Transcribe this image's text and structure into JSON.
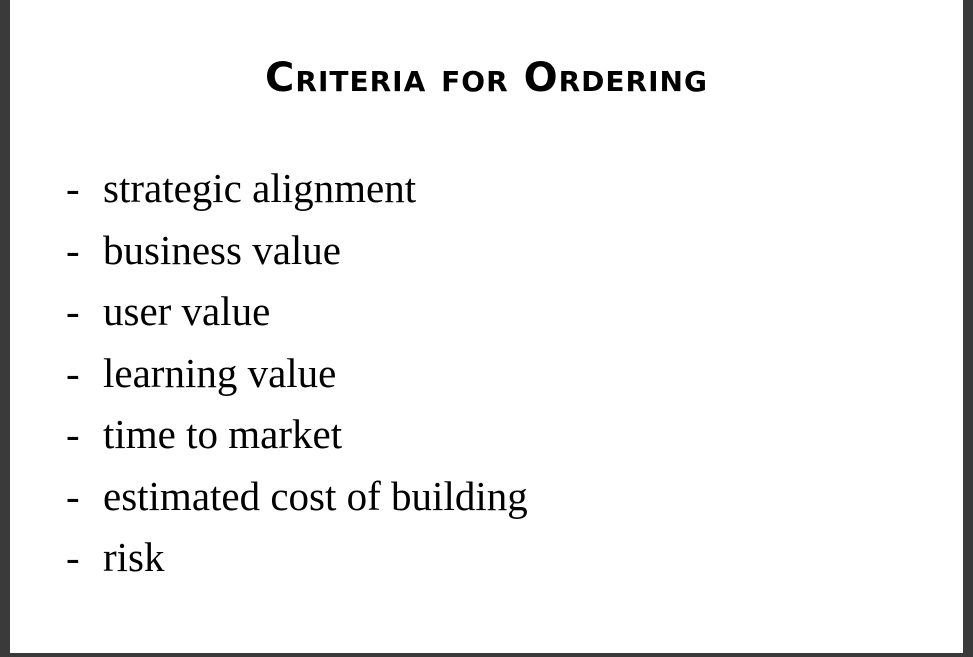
{
  "slide": {
    "title": "Criteria for Ordering",
    "bullet_marker": "-",
    "items": [
      "strategic alignment",
      "business value",
      "user value",
      "learning value",
      "time to market",
      "estimated cost of building",
      "risk"
    ]
  }
}
